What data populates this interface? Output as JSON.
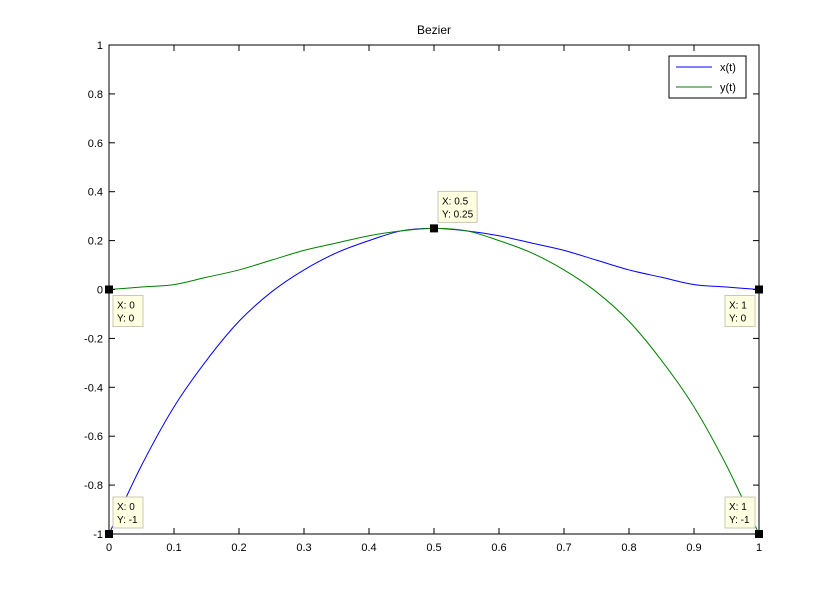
{
  "chart_data": {
    "type": "line",
    "title": "Bezier",
    "xlabel": "",
    "ylabel": "",
    "xlim": [
      0,
      1
    ],
    "ylim": [
      -1,
      1
    ],
    "grid": false,
    "legend_position": "top-right",
    "xticks": [
      0,
      0.1,
      0.2,
      0.3,
      0.4,
      0.5,
      0.6,
      0.7,
      0.8,
      0.9,
      1
    ],
    "xtick_labels": [
      "0",
      "0.1",
      "0.2",
      "0.3",
      "0.4",
      "0.5",
      "0.6",
      "0.7",
      "0.8",
      "0.9",
      "1"
    ],
    "yticks": [
      1,
      0.8,
      0.6,
      0.4,
      0.2,
      0,
      -0.2,
      -0.4,
      -0.6,
      -0.8,
      -1
    ],
    "ytick_labels": [
      "1",
      "0.8",
      "0.6",
      "0.4",
      "0.2",
      "0",
      "-0.2",
      "-0.4",
      "-0.6",
      "-0.8",
      "-1"
    ],
    "series": [
      {
        "name": "x(t)",
        "color": "#0000ff",
        "x": [
          0,
          0.05,
          0.1,
          0.15,
          0.2,
          0.25,
          0.3,
          0.35,
          0.4,
          0.45,
          0.5,
          0.55,
          0.6,
          0.65,
          0.7,
          0.75,
          0.8,
          0.85,
          0.9,
          0.95,
          1
        ],
        "y": [
          -1,
          -0.72,
          -0.48,
          -0.29,
          -0.13,
          -0.01,
          0.08,
          0.15,
          0.2,
          0.24,
          0.25,
          0.24,
          0.22,
          0.19,
          0.16,
          0.12,
          0.08,
          0.05,
          0.02,
          0.01,
          0
        ]
      },
      {
        "name": "y(t)",
        "color": "#008000",
        "x": [
          0,
          0.05,
          0.1,
          0.15,
          0.2,
          0.25,
          0.3,
          0.35,
          0.4,
          0.45,
          0.5,
          0.55,
          0.6,
          0.65,
          0.7,
          0.75,
          0.8,
          0.85,
          0.9,
          0.95,
          1
        ],
        "y": [
          0,
          0.01,
          0.02,
          0.05,
          0.08,
          0.12,
          0.16,
          0.19,
          0.22,
          0.24,
          0.25,
          0.24,
          0.2,
          0.15,
          0.08,
          -0.01,
          -0.13,
          -0.29,
          -0.48,
          -0.72,
          -1
        ]
      }
    ],
    "datatips": [
      {
        "x": 0,
        "y": 0,
        "x_text": "X: 0",
        "y_text": "Y: 0",
        "placement": "below-right"
      },
      {
        "x": 0.5,
        "y": 0.25,
        "x_text": "X: 0.5",
        "y_text": "Y: 0.25",
        "placement": "above-right"
      },
      {
        "x": 1,
        "y": 0,
        "x_text": "X: 1",
        "y_text": "Y: 0",
        "placement": "below-left"
      },
      {
        "x": 0,
        "y": -1,
        "x_text": "X: 0",
        "y_text": "Y: -1",
        "placement": "above-right"
      },
      {
        "x": 1,
        "y": -1,
        "x_text": "X: 1",
        "y_text": "Y: -1",
        "placement": "above-left"
      }
    ]
  }
}
